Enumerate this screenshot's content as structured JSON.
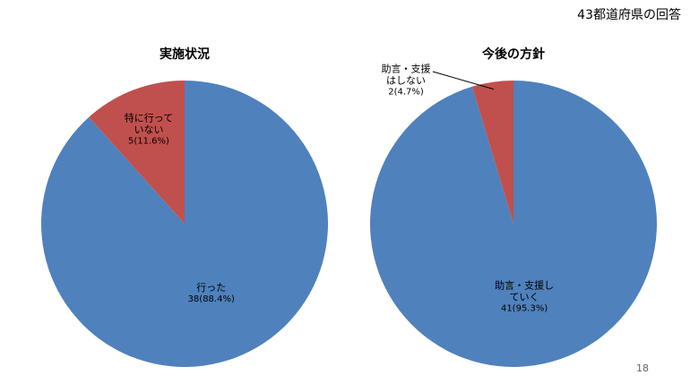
{
  "header": {
    "title": "43都道府県の回答"
  },
  "page_number": "18",
  "chart_data": [
    {
      "type": "pie",
      "title": "実施状況",
      "categories": [
        "行った",
        "特に行って\nいない"
      ],
      "values": [
        38,
        5
      ],
      "value_labels": [
        "38(88.4%)",
        "5(11.6%)"
      ],
      "colors": [
        "#4f81bd",
        "#c0504d"
      ]
    },
    {
      "type": "pie",
      "title": "今後の方針",
      "categories": [
        "助言・支援し\nていく",
        "助言・支援\nはしない"
      ],
      "values": [
        41,
        2
      ],
      "value_labels": [
        "41(95.3%)",
        "2(4.7%)"
      ],
      "colors": [
        "#4f81bd",
        "#c0504d"
      ]
    }
  ]
}
